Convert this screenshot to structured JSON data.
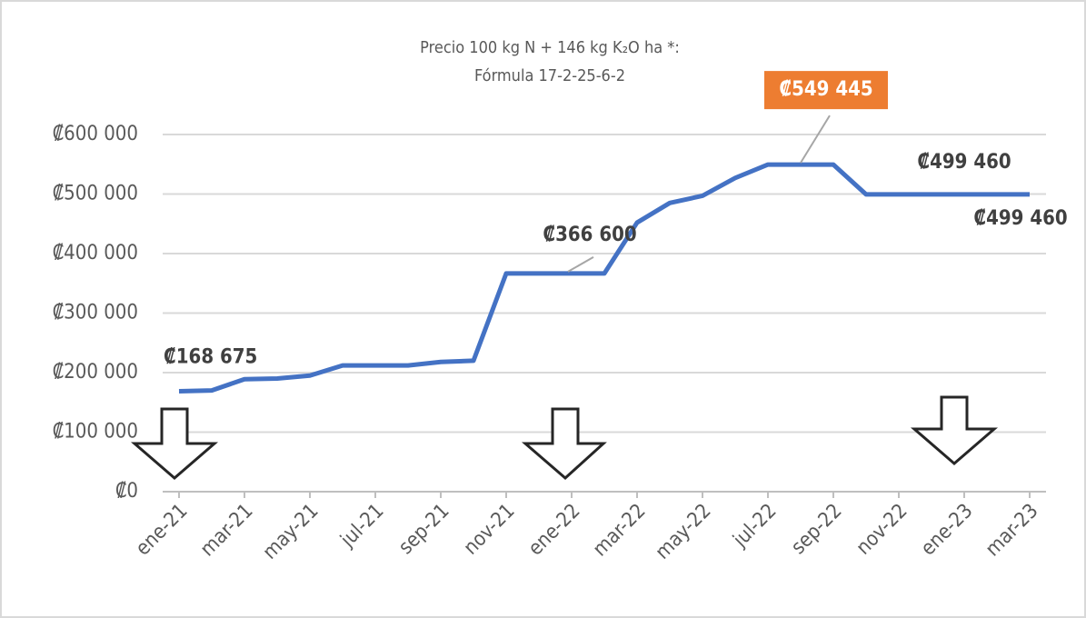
{
  "chart_data": {
    "type": "line",
    "title": [
      "Precio 100 kg N + 146 kg K₂O ha *:",
      "Fórmula 17-2-25-6-2"
    ],
    "categories": [
      "ene-21",
      null,
      "mar-21",
      null,
      "may-21",
      null,
      "jul-21",
      null,
      "sep-21",
      null,
      "nov-21",
      null,
      "ene-22",
      null,
      "mar-22",
      null,
      "may-22",
      null,
      "jul-22",
      null,
      "sep-22",
      null,
      "nov-22",
      null,
      "ene-23",
      null,
      "mar-23"
    ],
    "values": [
      168675,
      170000,
      189000,
      190000,
      195000,
      212000,
      212000,
      212000,
      218000,
      220000,
      366600,
      366600,
      366600,
      366600,
      452000,
      485000,
      497000,
      527000,
      549445,
      549445,
      549445,
      499460,
      499460,
      499460,
      499460,
      499460,
      499460
    ],
    "value_labels": [
      "₡168 675",
      null,
      null,
      null,
      null,
      null,
      null,
      null,
      null,
      null,
      null,
      null,
      "₡366 600",
      null,
      null,
      null,
      null,
      null,
      null,
      "₡549 445",
      null,
      null,
      null,
      null,
      "₡499 460",
      null,
      "₡499 460"
    ],
    "color": "#4472c4",
    "highlight_color": "#ed7d31",
    "ylim": [
      0,
      600000
    ],
    "yticks": [
      {
        "value": 0,
        "label": "₡0"
      },
      {
        "value": 100000,
        "label": "₡100 000"
      },
      {
        "value": 200000,
        "label": "₡200 000"
      },
      {
        "value": 300000,
        "label": "₡300 000"
      },
      {
        "value": 400000,
        "label": "₡400 000"
      },
      {
        "value": 500000,
        "label": "₡500 000"
      },
      {
        "value": 600000,
        "label": "₡600 000"
      }
    ],
    "grid": true
  }
}
